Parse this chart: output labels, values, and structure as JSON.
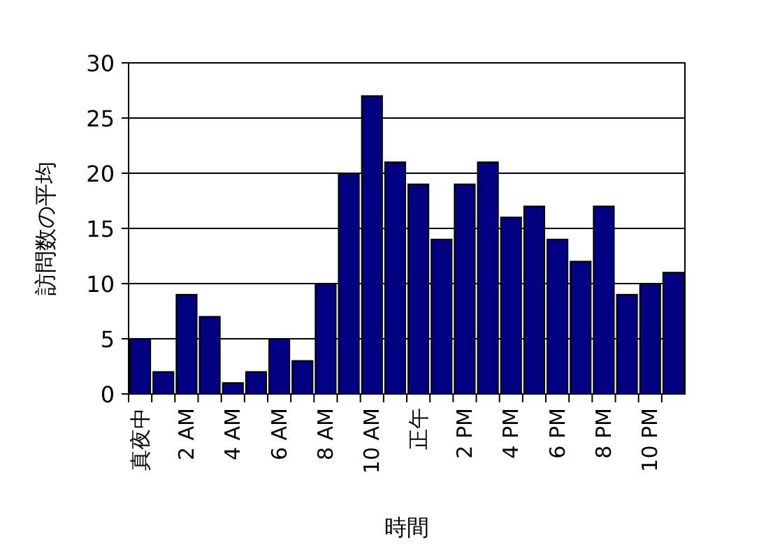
{
  "chart_data": {
    "type": "bar",
    "xlabel": "時間",
    "ylabel": "訪問数の平均",
    "categories": [
      "真夜中",
      null,
      "2 AM",
      null,
      "4 AM",
      null,
      "6 AM",
      null,
      "8 AM",
      null,
      "10 AM",
      null,
      "正午",
      null,
      "2 PM",
      null,
      "4 PM",
      null,
      "6 PM",
      null,
      "8 PM",
      null,
      "10 PM",
      null
    ],
    "values": [
      5,
      2,
      9,
      7,
      1,
      2,
      5,
      3,
      10,
      20,
      27,
      21,
      19,
      14,
      19,
      21,
      16,
      17,
      14,
      12,
      17,
      9,
      10,
      11
    ],
    "color": "#000080",
    "ylim": [
      0,
      30
    ],
    "yticks": [
      0,
      5,
      10,
      15,
      20,
      25,
      30
    ],
    "grid": "y"
  }
}
